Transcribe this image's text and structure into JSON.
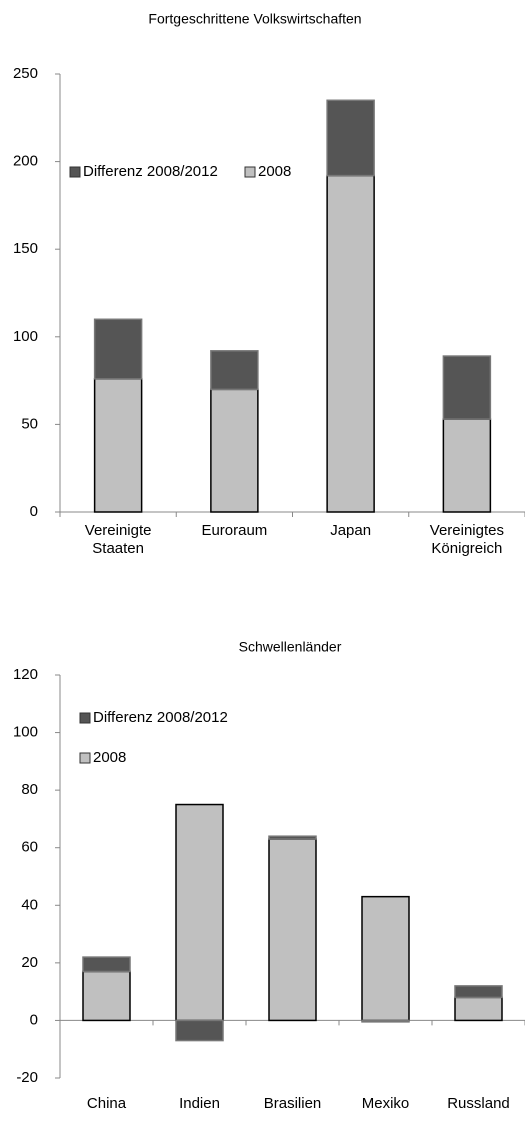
{
  "chart_data": [
    {
      "type": "bar",
      "stacked": true,
      "title": "Fortgeschrittene Volkswirtschaften",
      "categories": [
        "Vereinigte Staaten",
        "Euroraum",
        "Japan",
        "Vereinigtes Königreich"
      ],
      "series": [
        {
          "name": "Differenz 2008/2012",
          "color": "#555555",
          "values": [
            34,
            22,
            43,
            36
          ]
        },
        {
          "name": "2008",
          "color": "#c0c0c0",
          "values": [
            76,
            70,
            192,
            53
          ]
        }
      ],
      "ylim": [
        0,
        250
      ],
      "yticks": [
        0,
        50,
        100,
        150,
        200,
        250
      ]
    },
    {
      "type": "bar",
      "stacked": true,
      "title": "Schwellenländer",
      "categories": [
        "China",
        "Indien",
        "Brasilien",
        "Mexiko",
        "Russland"
      ],
      "series": [
        {
          "name": "Differenz 2008/2012",
          "color": "#555555",
          "values": [
            5,
            -7,
            1,
            -0.5,
            4
          ]
        },
        {
          "name": "2008",
          "color": "#c0c0c0",
          "values": [
            17,
            75,
            63,
            43,
            8
          ]
        }
      ],
      "ylim": [
        -20,
        120
      ],
      "yticks": [
        -20,
        0,
        20,
        40,
        60,
        80,
        100,
        120
      ]
    }
  ]
}
